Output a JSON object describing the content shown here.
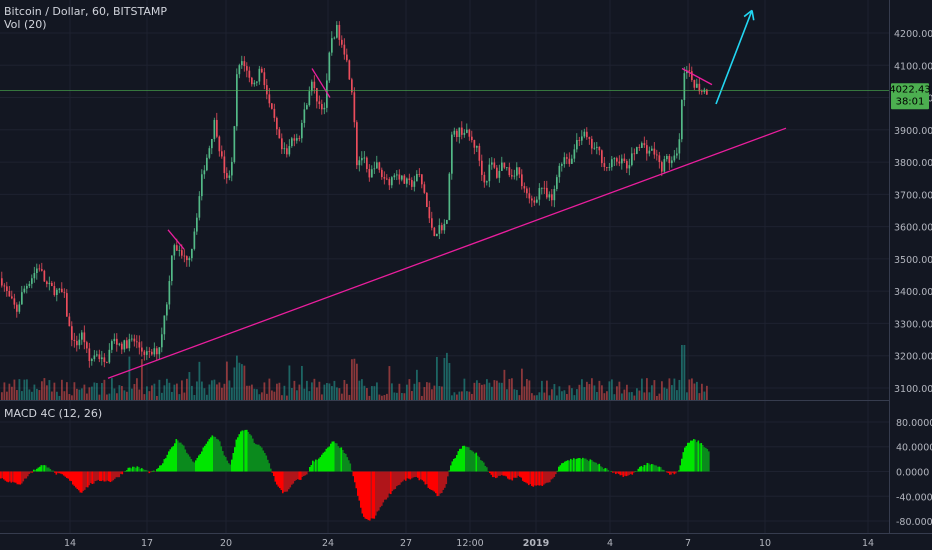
{
  "header": {
    "title": "Bitcoin / Dollar, 60, BITSTAMP",
    "volume_label": "Vol (20)",
    "macd_label": "MACD 4C (12, 26)"
  },
  "price_axis": {
    "ticks": [
      "4200.00",
      "4100.00",
      "4000.00",
      "3900.00",
      "3800.00",
      "3700.00",
      "3600.00",
      "3500.00",
      "3400.00",
      "3300.00",
      "3200.00",
      "3100.00"
    ],
    "last_price": "4022.43",
    "countdown": "38:01"
  },
  "macd_axis": {
    "ticks": [
      "80.0000",
      "40.0000",
      "0.0000",
      "-40.0000",
      "-80.0000"
    ]
  },
  "time_axis": {
    "labels": [
      "14",
      "17",
      "20",
      "24",
      "27",
      "12:00",
      "2019",
      "4",
      "7",
      "10",
      "14"
    ]
  },
  "colors": {
    "background": "#131722",
    "up": "#26a69a",
    "up_candle": "#53b987",
    "down": "#eb4d5c",
    "macd_up": "#00e600",
    "macd_down": "#ff0000",
    "trendline": "#e91e9d",
    "arrow": "#22d6f2",
    "price_line": "#4caf50"
  },
  "chart_data": {
    "type": "candlestick",
    "symbol": "Bitcoin / Dollar",
    "interval": "60",
    "exchange": "BITSTAMP",
    "ylim": [
      3050,
      4270
    ],
    "close_path": [
      [
        0,
        3440
      ],
      [
        8,
        3380
      ],
      [
        16,
        3340
      ],
      [
        22,
        3400
      ],
      [
        30,
        3440
      ],
      [
        38,
        3480
      ],
      [
        45,
        3420
      ],
      [
        55,
        3400
      ],
      [
        63,
        3390
      ],
      [
        68,
        3290
      ],
      [
        74,
        3230
      ],
      [
        82,
        3270
      ],
      [
        88,
        3180
      ],
      [
        96,
        3210
      ],
      [
        104,
        3170
      ],
      [
        112,
        3250
      ],
      [
        122,
        3230
      ],
      [
        132,
        3250
      ],
      [
        140,
        3220
      ],
      [
        148,
        3200
      ],
      [
        158,
        3220
      ],
      [
        164,
        3330
      ],
      [
        168,
        3410
      ],
      [
        172,
        3560
      ],
      [
        178,
        3520
      ],
      [
        184,
        3500
      ],
      [
        190,
        3520
      ],
      [
        196,
        3640
      ],
      [
        202,
        3770
      ],
      [
        208,
        3840
      ],
      [
        214,
        3930
      ],
      [
        220,
        3820
      ],
      [
        226,
        3740
      ],
      [
        232,
        3800
      ],
      [
        236,
        4070
      ],
      [
        242,
        4120
      ],
      [
        248,
        4060
      ],
      [
        254,
        4040
      ],
      [
        260,
        4100
      ],
      [
        268,
        3980
      ],
      [
        274,
        3920
      ],
      [
        280,
        3840
      ],
      [
        286,
        3820
      ],
      [
        292,
        3880
      ],
      [
        298,
        3880
      ],
      [
        304,
        3960
      ],
      [
        310,
        4050
      ],
      [
        318,
        3980
      ],
      [
        324,
        3970
      ],
      [
        330,
        4180
      ],
      [
        336,
        4210
      ],
      [
        342,
        4170
      ],
      [
        348,
        4080
      ],
      [
        352,
        4010
      ],
      [
        356,
        3800
      ],
      [
        362,
        3820
      ],
      [
        368,
        3740
      ],
      [
        374,
        3800
      ],
      [
        380,
        3760
      ],
      [
        388,
        3740
      ],
      [
        396,
        3770
      ],
      [
        402,
        3740
      ],
      [
        410,
        3730
      ],
      [
        418,
        3760
      ],
      [
        424,
        3700
      ],
      [
        428,
        3620
      ],
      [
        434,
        3580
      ],
      [
        440,
        3600
      ],
      [
        446,
        3610
      ],
      [
        450,
        3880
      ],
      [
        456,
        3890
      ],
      [
        462,
        3900
      ],
      [
        468,
        3880
      ],
      [
        476,
        3840
      ],
      [
        484,
        3730
      ],
      [
        490,
        3800
      ],
      [
        496,
        3760
      ],
      [
        502,
        3800
      ],
      [
        510,
        3760
      ],
      [
        516,
        3780
      ],
      [
        522,
        3720
      ],
      [
        528,
        3680
      ],
      [
        534,
        3680
      ],
      [
        540,
        3730
      ],
      [
        546,
        3690
      ],
      [
        552,
        3680
      ],
      [
        558,
        3790
      ],
      [
        564,
        3820
      ],
      [
        570,
        3800
      ],
      [
        576,
        3870
      ],
      [
        582,
        3890
      ],
      [
        590,
        3850
      ],
      [
        598,
        3830
      ],
      [
        606,
        3780
      ],
      [
        612,
        3800
      ],
      [
        620,
        3810
      ],
      [
        626,
        3780
      ],
      [
        632,
        3820
      ],
      [
        638,
        3860
      ],
      [
        646,
        3840
      ],
      [
        654,
        3830
      ],
      [
        660,
        3780
      ],
      [
        666,
        3810
      ],
      [
        672,
        3800
      ],
      [
        678,
        3830
      ],
      [
        682,
        4050
      ],
      [
        686,
        4080
      ],
      [
        692,
        4050
      ],
      [
        698,
        4030
      ],
      [
        704,
        4020
      ],
      [
        708,
        4022.43
      ]
    ],
    "macd_path": [
      [
        0,
        -10
      ],
      [
        10,
        -18
      ],
      [
        20,
        -20
      ],
      [
        30,
        -2
      ],
      [
        40,
        10
      ],
      [
        48,
        8
      ],
      [
        54,
        -3
      ],
      [
        62,
        -6
      ],
      [
        70,
        -16
      ],
      [
        80,
        -34
      ],
      [
        90,
        -20
      ],
      [
        100,
        -14
      ],
      [
        110,
        -16
      ],
      [
        118,
        -8
      ],
      [
        126,
        4
      ],
      [
        134,
        8
      ],
      [
        142,
        4
      ],
      [
        150,
        -2
      ],
      [
        156,
        2
      ],
      [
        162,
        14
      ],
      [
        170,
        36
      ],
      [
        176,
        52
      ],
      [
        182,
        44
      ],
      [
        188,
        26
      ],
      [
        194,
        14
      ],
      [
        200,
        30
      ],
      [
        206,
        48
      ],
      [
        212,
        58
      ],
      [
        218,
        52
      ],
      [
        224,
        24
      ],
      [
        230,
        10
      ],
      [
        236,
        54
      ],
      [
        242,
        68
      ],
      [
        248,
        64
      ],
      [
        254,
        46
      ],
      [
        260,
        40
      ],
      [
        266,
        24
      ],
      [
        270,
        6
      ],
      [
        276,
        -22
      ],
      [
        282,
        -34
      ],
      [
        288,
        -30
      ],
      [
        294,
        -16
      ],
      [
        300,
        -12
      ],
      [
        306,
        -4
      ],
      [
        312,
        16
      ],
      [
        320,
        24
      ],
      [
        326,
        36
      ],
      [
        332,
        48
      ],
      [
        338,
        42
      ],
      [
        344,
        30
      ],
      [
        350,
        10
      ],
      [
        356,
        -32
      ],
      [
        362,
        -72
      ],
      [
        368,
        -80
      ],
      [
        374,
        -74
      ],
      [
        380,
        -56
      ],
      [
        388,
        -38
      ],
      [
        396,
        -24
      ],
      [
        404,
        -14
      ],
      [
        414,
        -10
      ],
      [
        422,
        -14
      ],
      [
        430,
        -30
      ],
      [
        438,
        -40
      ],
      [
        444,
        -28
      ],
      [
        450,
        10
      ],
      [
        456,
        28
      ],
      [
        462,
        42
      ],
      [
        468,
        38
      ],
      [
        476,
        28
      ],
      [
        484,
        12
      ],
      [
        490,
        -6
      ],
      [
        496,
        -10
      ],
      [
        502,
        -6
      ],
      [
        510,
        -14
      ],
      [
        518,
        -8
      ],
      [
        524,
        -16
      ],
      [
        530,
        -22
      ],
      [
        538,
        -24
      ],
      [
        546,
        -20
      ],
      [
        554,
        -8
      ],
      [
        560,
        14
      ],
      [
        566,
        18
      ],
      [
        572,
        20
      ],
      [
        578,
        22
      ],
      [
        584,
        20
      ],
      [
        590,
        18
      ],
      [
        596,
        14
      ],
      [
        602,
        6
      ],
      [
        608,
        2
      ],
      [
        614,
        -4
      ],
      [
        620,
        -6
      ],
      [
        626,
        -8
      ],
      [
        632,
        -4
      ],
      [
        638,
        6
      ],
      [
        646,
        12
      ],
      [
        654,
        10
      ],
      [
        660,
        6
      ],
      [
        666,
        -3
      ],
      [
        672,
        -4
      ],
      [
        678,
        0
      ],
      [
        682,
        30
      ],
      [
        686,
        44
      ],
      [
        692,
        52
      ],
      [
        698,
        48
      ],
      [
        704,
        40
      ],
      [
        708,
        34
      ]
    ],
    "trendlines": [
      {
        "from": [
          108,
          3130
        ],
        "to": [
          786,
          3905
        ]
      },
      {
        "from": [
          168,
          3590
        ],
        "to": [
          184,
          3530
        ]
      },
      {
        "from": [
          312,
          4090
        ],
        "to": [
          330,
          4000
        ]
      },
      {
        "from": [
          682,
          4090
        ],
        "to": [
          712,
          4040
        ]
      }
    ],
    "projection_arrow": {
      "from": [
        716,
        3980
      ],
      "to": [
        752,
        4270
      ]
    }
  }
}
